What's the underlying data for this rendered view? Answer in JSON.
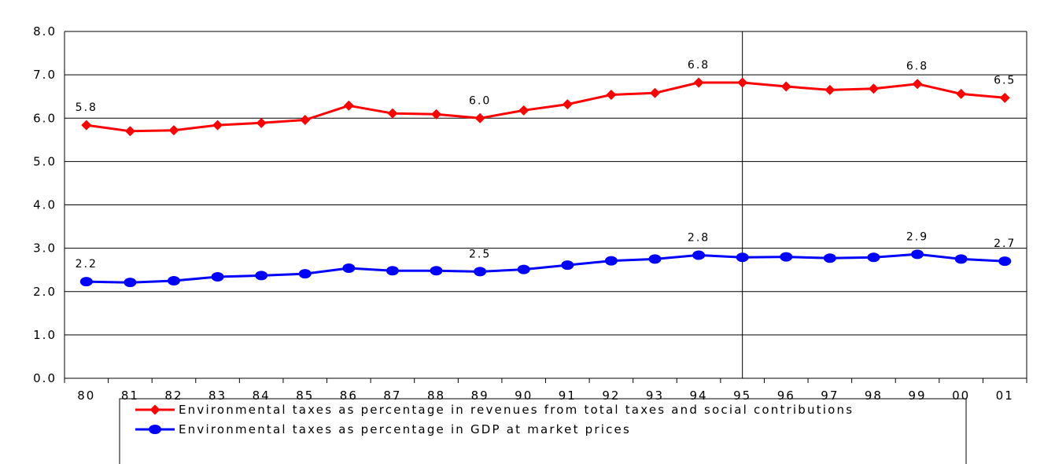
{
  "chart_data": {
    "type": "line",
    "categories": [
      "80",
      "81",
      "82",
      "83",
      "84",
      "85",
      "86",
      "87",
      "88",
      "89",
      "90",
      "91",
      "92",
      "93",
      "94",
      "95",
      "96",
      "97",
      "98",
      "99",
      "00",
      "01"
    ],
    "ylim": [
      0,
      8
    ],
    "yticks": [
      "0.0",
      "1.0",
      "2.0",
      "3.0",
      "4.0",
      "5.0",
      "6.0",
      "7.0",
      "8.0"
    ],
    "grid": true,
    "reference_line_at": "95",
    "legend_position": "bottom",
    "series": [
      {
        "name": "Environmental taxes as percentage in revenues from total taxes and social contributions",
        "color": "#ff0000",
        "marker": "diamond",
        "values": [
          5.84,
          5.7,
          5.72,
          5.84,
          5.89,
          5.96,
          6.29,
          6.11,
          6.09,
          6.0,
          6.18,
          6.32,
          6.54,
          6.58,
          6.82,
          6.82,
          6.73,
          6.65,
          6.68,
          6.79,
          6.56,
          6.47
        ],
        "data_labels": [
          {
            "index": 0,
            "text": "5.8"
          },
          {
            "index": 9,
            "text": "6.0"
          },
          {
            "index": 14,
            "text": "6.8"
          },
          {
            "index": 19,
            "text": "6.8"
          },
          {
            "index": 21,
            "text": "6.5"
          }
        ]
      },
      {
        "name": "Environmental taxes as percentage in GDP at market prices",
        "color": "#0000ff",
        "marker": "circle",
        "values": [
          2.23,
          2.21,
          2.25,
          2.34,
          2.37,
          2.41,
          2.54,
          2.48,
          2.48,
          2.46,
          2.51,
          2.61,
          2.71,
          2.75,
          2.84,
          2.79,
          2.8,
          2.77,
          2.79,
          2.86,
          2.75,
          2.7
        ],
        "data_labels": [
          {
            "index": 0,
            "text": "2.2"
          },
          {
            "index": 9,
            "text": "2.5"
          },
          {
            "index": 14,
            "text": "2.8"
          },
          {
            "index": 19,
            "text": "2.9"
          },
          {
            "index": 21,
            "text": "2.7"
          }
        ]
      }
    ]
  }
}
